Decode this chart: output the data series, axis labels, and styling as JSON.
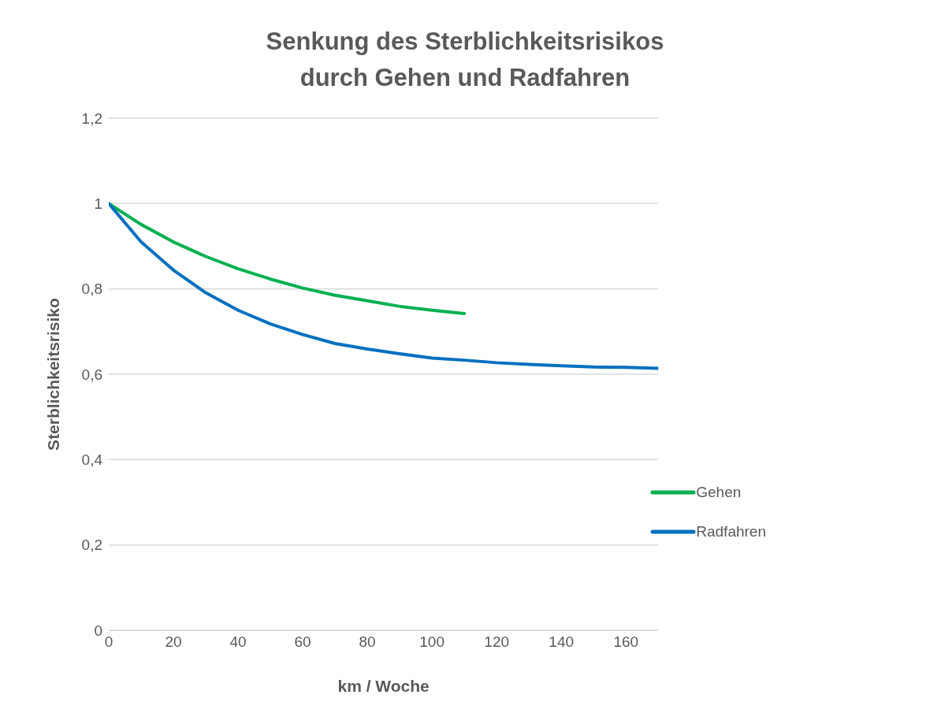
{
  "chart_data": {
    "type": "line",
    "title": "Senkung des Sterblichkeitsrisikos\ndurch Gehen und Radfahren",
    "xlabel": "km / Woche",
    "ylabel": "Sterblichkeitsrisiko",
    "series": [
      {
        "name": "Gehen",
        "color": "#00b050",
        "x": [
          0,
          10,
          20,
          30,
          40,
          50,
          60,
          70,
          80,
          90,
          100,
          110
        ],
        "values": [
          1,
          0.951,
          0.91,
          0.876,
          0.847,
          0.823,
          0.802,
          0.785,
          0.772,
          0.759,
          0.75,
          0.742
        ]
      },
      {
        "name": "Radfahren",
        "color": "#0070c0",
        "x": [
          0,
          10,
          20,
          30,
          40,
          50,
          60,
          70,
          80,
          90,
          100,
          110,
          120,
          130,
          140,
          150,
          160,
          170
        ],
        "values": [
          1,
          0.91,
          0.844,
          0.791,
          0.75,
          0.718,
          0.693,
          0.672,
          0.659,
          0.648,
          0.638,
          0.633,
          0.627,
          0.623,
          0.62,
          0.617,
          0.616,
          0.614
        ]
      }
    ],
    "xlim": [
      0,
      170
    ],
    "xticks": [
      0,
      20,
      40,
      60,
      80,
      100,
      120,
      140,
      160
    ],
    "ylim": [
      0,
      1.2
    ],
    "yticks": [
      0,
      {
        "value": 0.2,
        "label": "0,2"
      },
      {
        "value": 0.4,
        "label": "0,4"
      },
      {
        "value": 0.6,
        "label": "0,6"
      },
      {
        "value": 0.8,
        "label": "0,8"
      },
      1,
      {
        "value": 1.2,
        "label": "1,2"
      }
    ],
    "grid": "y",
    "legend": "bottom right",
    "marker": "none",
    "line_style": "solid"
  }
}
